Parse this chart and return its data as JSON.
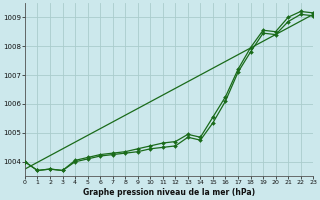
{
  "title": "Graphe pression niveau de la mer (hPa)",
  "background_color": "#cce8ec",
  "grid_color": "#aacccc",
  "line_color": "#1a6b1a",
  "x_min": 0,
  "x_max": 23,
  "y_min": 1003.5,
  "y_max": 1009.5,
  "y_ticks": [
    1004,
    1005,
    1006,
    1007,
    1008,
    1009
  ],
  "x_ticks": [
    0,
    1,
    2,
    3,
    4,
    5,
    6,
    7,
    8,
    9,
    10,
    11,
    12,
    13,
    14,
    15,
    16,
    17,
    18,
    19,
    20,
    21,
    22,
    23
  ],
  "series1_x": [
    0,
    1,
    2,
    3,
    4,
    5,
    6,
    7,
    8,
    9,
    10,
    11,
    12,
    13,
    14,
    15,
    16,
    17,
    18,
    19,
    20,
    21,
    22,
    23
  ],
  "series1_y": [
    1004.0,
    1003.7,
    1003.75,
    1003.7,
    1004.0,
    1004.1,
    1004.2,
    1004.25,
    1004.3,
    1004.35,
    1004.45,
    1004.5,
    1004.55,
    1004.85,
    1004.75,
    1005.35,
    1006.1,
    1007.1,
    1007.8,
    1008.45,
    1008.4,
    1008.85,
    1009.1,
    1009.05
  ],
  "series2_x": [
    0,
    1,
    2,
    3,
    4,
    5,
    6,
    7,
    8,
    9,
    10,
    11,
    12,
    13,
    14,
    15,
    16,
    17,
    18,
    19,
    20,
    21,
    22,
    23
  ],
  "series2_y": [
    1004.0,
    1003.7,
    1003.75,
    1003.7,
    1004.05,
    1004.15,
    1004.25,
    1004.3,
    1004.35,
    1004.45,
    1004.55,
    1004.65,
    1004.7,
    1004.95,
    1004.85,
    1005.55,
    1006.25,
    1007.2,
    1007.95,
    1008.55,
    1008.5,
    1009.0,
    1009.2,
    1009.15
  ],
  "series3_x": [
    0,
    23
  ],
  "series3_y": [
    1003.75,
    1009.1
  ]
}
